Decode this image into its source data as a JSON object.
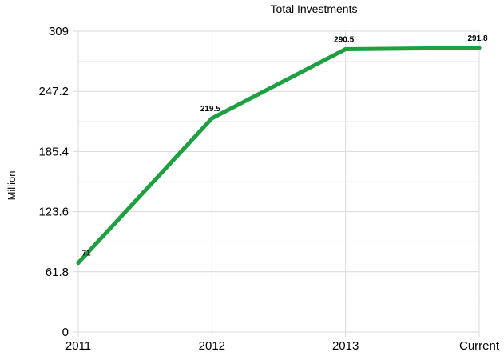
{
  "chart_data": {
    "type": "line",
    "title": "Total Investments",
    "ylabel": "Million",
    "xlabel": "",
    "categories": [
      "2011",
      "2012",
      "2013",
      "Current"
    ],
    "series": [
      {
        "values": [
          71,
          219.5,
          290.5,
          291.8
        ]
      }
    ],
    "value_labels": [
      "71",
      "219.5",
      "290.5",
      "291.8"
    ],
    "y_ticks": [
      0,
      61.8,
      123.6,
      185.4,
      247.2,
      309
    ],
    "y_tick_labels": [
      "0",
      "61.8",
      "123.6",
      "185.4",
      "247.2",
      "309"
    ],
    "ylim": [
      0,
      309
    ],
    "grid": true,
    "legend": "none",
    "line_color": "#1ea040"
  }
}
